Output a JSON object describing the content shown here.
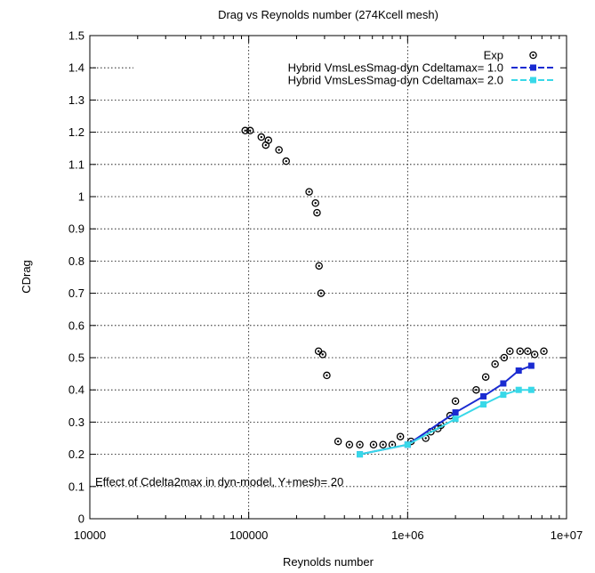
{
  "chart_data": {
    "type": "scatter",
    "title": "Drag vs Reynolds number (274Kcell mesh)",
    "xlabel": "Reynolds number",
    "ylabel": "CDrag",
    "xscale": "log",
    "xlim": [
      10000,
      10000000
    ],
    "ylim": [
      0,
      1.5
    ],
    "x_ticks": [
      {
        "value": 10000,
        "label": "10000"
      },
      {
        "value": 100000,
        "label": "100000"
      },
      {
        "value": 1000000,
        "label": "1e+06"
      },
      {
        "value": 10000000,
        "label": "1e+07"
      }
    ],
    "y_ticks": [
      {
        "value": 0,
        "label": "0"
      },
      {
        "value": 0.1,
        "label": "0.1"
      },
      {
        "value": 0.2,
        "label": "0.2"
      },
      {
        "value": 0.3,
        "label": "0.3"
      },
      {
        "value": 0.4,
        "label": "0.4"
      },
      {
        "value": 0.5,
        "label": "0.5"
      },
      {
        "value": 0.6,
        "label": "0.6"
      },
      {
        "value": 0.7,
        "label": "0.7"
      },
      {
        "value": 0.8,
        "label": "0.8"
      },
      {
        "value": 0.9,
        "label": "0.9"
      },
      {
        "value": 1,
        "label": "1"
      },
      {
        "value": 1.1,
        "label": "1.1"
      },
      {
        "value": 1.2,
        "label": "1.2"
      },
      {
        "value": 1.3,
        "label": "1.3"
      },
      {
        "value": 1.4,
        "label": "1.4"
      },
      {
        "value": 1.5,
        "label": "1.5"
      }
    ],
    "grid": true,
    "legend_position": "top-right",
    "annotation": "Effect of Cdelta2max in dyn-model, Y+mesh= 20",
    "series": [
      {
        "name": "Exp",
        "style": "points",
        "marker": "circle",
        "color": "#000000",
        "x": [
          95000,
          102000,
          120000,
          128000,
          133000,
          155000,
          172000,
          240000,
          263000,
          269000,
          277000,
          285000,
          275000,
          292000,
          310000,
          365000,
          430000,
          500000,
          610000,
          700000,
          800000,
          900000,
          1050000,
          1300000,
          1400000,
          1550000,
          1620000,
          1850000,
          2000000,
          2700000,
          3100000,
          3550000,
          4050000,
          4400000,
          5100000,
          5700000,
          6300000,
          7200000
        ],
        "y": [
          1.205,
          1.205,
          1.185,
          1.16,
          1.175,
          1.145,
          1.11,
          1.015,
          0.98,
          0.95,
          0.785,
          0.7,
          0.52,
          0.51,
          0.445,
          0.24,
          0.23,
          0.23,
          0.23,
          0.23,
          0.23,
          0.255,
          0.24,
          0.25,
          0.27,
          0.28,
          0.29,
          0.32,
          0.365,
          0.4,
          0.44,
          0.48,
          0.5,
          0.52,
          0.52,
          0.52,
          0.51,
          0.52
        ]
      },
      {
        "name": "Hybrid VmsLesSmag-dyn Cdeltamax= 1.0",
        "style": "linespoints",
        "marker": "square",
        "color": "#1a2bd1",
        "x": [
          500000,
          1000000,
          2000000,
          3000000,
          4000000,
          5000000,
          6000000
        ],
        "y": [
          0.2,
          0.23,
          0.33,
          0.38,
          0.42,
          0.46,
          0.475
        ]
      },
      {
        "name": "Hybrid VmsLesSmag-dyn Cdeltamax= 2.0",
        "style": "linespoints",
        "marker": "square",
        "color": "#38d8e8",
        "x": [
          500000,
          1000000,
          2000000,
          3000000,
          4000000,
          5000000,
          6000000
        ],
        "y": [
          0.2,
          0.23,
          0.31,
          0.355,
          0.385,
          0.4,
          0.4
        ]
      }
    ]
  }
}
